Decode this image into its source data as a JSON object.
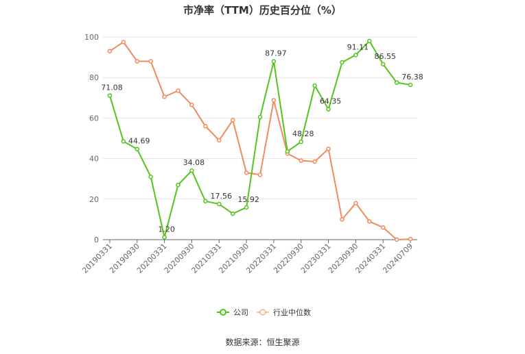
{
  "chart_data": {
    "type": "line",
    "title": "市净率（TTM）历史百分位（%）",
    "ylim": [
      0,
      100
    ],
    "yticks": [
      0,
      20,
      40,
      60,
      80,
      100
    ],
    "grid": true,
    "legend_position": "bottom",
    "x_tick_labels": [
      "20190331",
      "20190930",
      "20200331",
      "20200930",
      "20210331",
      "20210930",
      "20220331",
      "20220930",
      "20230331",
      "20230930",
      "20240331",
      "20240709"
    ],
    "series": [
      {
        "name": "公司",
        "color": "#52c41a",
        "values": [
          71.08,
          48.5,
          44.69,
          31.0,
          1.2,
          27.0,
          34.08,
          19.0,
          17.56,
          12.8,
          15.92,
          60.5,
          87.97,
          43.5,
          48.28,
          76.0,
          64.35,
          87.5,
          91.11,
          98.0,
          86.55,
          77.5,
          76.38
        ],
        "labels": [
          "71.08",
          "",
          "44.69",
          "",
          "1.20",
          "",
          "34.08",
          "",
          "17.56",
          "",
          "15.92",
          "",
          "87.97",
          "",
          "48.28",
          "",
          "64.35",
          "",
          "91.11",
          "",
          "86.55",
          "",
          "76.38"
        ]
      },
      {
        "name": "行业中位数",
        "color": "#f08a5d",
        "values": [
          93.0,
          97.5,
          88.0,
          88.0,
          70.5,
          73.5,
          66.5,
          56.0,
          49.0,
          59.0,
          33.0,
          32.0,
          68.8,
          42.5,
          39.0,
          38.5,
          44.8,
          10.0,
          18.0,
          9.0,
          6.0,
          0.0,
          0.3
        ],
        "labels": []
      }
    ]
  },
  "source": "数据来源：恒生聚源"
}
